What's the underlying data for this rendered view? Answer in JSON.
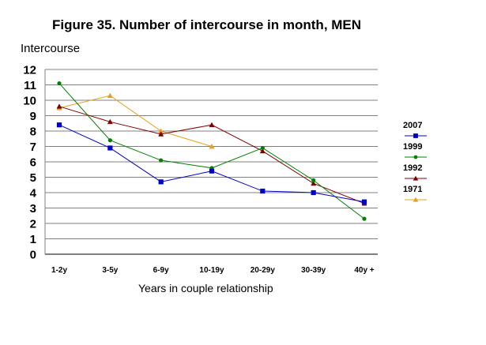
{
  "chart_data": {
    "type": "line",
    "title": "Figure 35. Number of intercourse in month, MEN",
    "ylabel": "Intercourse",
    "xlabel": "Years in couple relationship",
    "categories": [
      "1-2y",
      "3-5y",
      "6-9y",
      "10-19y",
      "20-29y",
      "30-39y",
      "40y +"
    ],
    "ylim": [
      0,
      12
    ],
    "yticks": [
      "0",
      "1",
      "2",
      "3",
      "4",
      "5",
      "6",
      "7",
      "8",
      "9",
      "10",
      "11",
      "12"
    ],
    "grid": true,
    "legend_position": "right",
    "series": [
      {
        "name": "2007",
        "color": "#0000cc",
        "marker": "square",
        "values": [
          8.4,
          6.9,
          4.7,
          5.4,
          4.1,
          4.0,
          3.4
        ]
      },
      {
        "name": "1999",
        "color": "#008000",
        "marker": "circle",
        "values": [
          11.1,
          7.4,
          6.1,
          5.6,
          6.9,
          4.8,
          2.3
        ]
      },
      {
        "name": "1992",
        "color": "#800000",
        "marker": "triangle",
        "values": [
          9.6,
          8.6,
          7.8,
          8.4,
          6.7,
          4.6,
          3.3
        ]
      },
      {
        "name": "1971",
        "color": "#e8a020",
        "marker": "triangle",
        "values": [
          9.5,
          10.3,
          8.0,
          7.0,
          null,
          null,
          null
        ]
      }
    ]
  }
}
